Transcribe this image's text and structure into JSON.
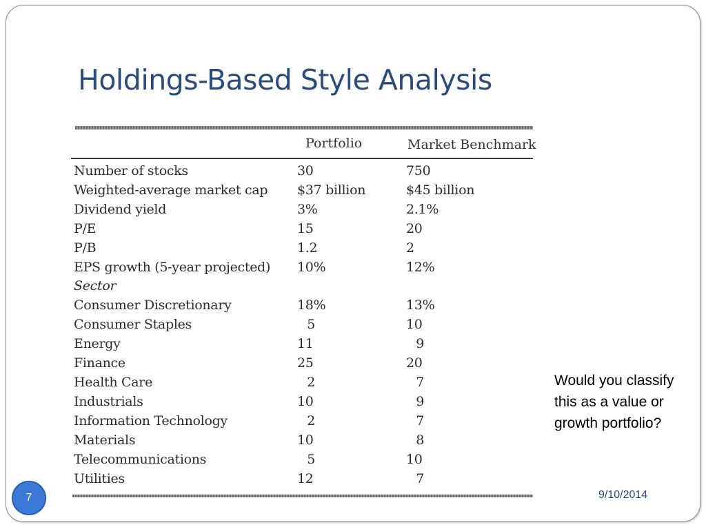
{
  "slide": {
    "title": "Holdings-Based Style Analysis",
    "note": "Would you classify this as a value or growth portfolio?",
    "page_number": "7",
    "date": "9/10/2014",
    "accent_color": "#2b4b7a",
    "badge_color": "#3b78d8"
  },
  "table": {
    "headers": {
      "portfolio": "Portfolio",
      "benchmark": "Market Benchmark"
    },
    "rows": [
      {
        "label": "Number of stocks",
        "portfolio": "30",
        "benchmark": "750"
      },
      {
        "label": "Weighted-average market cap",
        "portfolio": "$37 billion",
        "benchmark": "$45 billion"
      },
      {
        "label": "Dividend yield",
        "portfolio": "3%",
        "benchmark": "2.1%"
      },
      {
        "label": "P/E",
        "portfolio": "15",
        "benchmark": "20"
      },
      {
        "label": "P/B",
        "portfolio": "1.2",
        "benchmark": "2"
      },
      {
        "label": "EPS growth (5-year projected)",
        "portfolio": "10%",
        "benchmark": "12%"
      },
      {
        "label": "Sector",
        "portfolio": "",
        "benchmark": ""
      },
      {
        "label": "Consumer Discretionary",
        "portfolio": "18%",
        "benchmark": "13%"
      },
      {
        "label": "Consumer Staples",
        "portfolio": "5",
        "benchmark": "10"
      },
      {
        "label": "Energy",
        "portfolio": "11",
        "benchmark": "9"
      },
      {
        "label": "Finance",
        "portfolio": "25",
        "benchmark": "20"
      },
      {
        "label": "Health Care",
        "portfolio": "2",
        "benchmark": "7"
      },
      {
        "label": "Industrials",
        "portfolio": "10",
        "benchmark": "9"
      },
      {
        "label": "Information Technology",
        "portfolio": "2",
        "benchmark": "7"
      },
      {
        "label": "Materials",
        "portfolio": "10",
        "benchmark": "8"
      },
      {
        "label": "Telecommunications",
        "portfolio": "5",
        "benchmark": "10"
      },
      {
        "label": "Utilities",
        "portfolio": "12",
        "benchmark": "7"
      }
    ]
  }
}
